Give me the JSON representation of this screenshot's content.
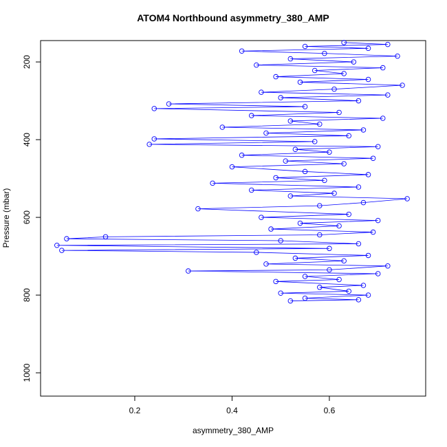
{
  "chart_data": {
    "type": "line",
    "title": "ATOM4 Northbound asymmetry_380_AMP",
    "x_label": "asymmetry_380_AMP",
    "y_label": "Pressure (mbar)",
    "xlim": [
      0.0064,
      0.798
    ],
    "ylim": [
      1060,
      145
    ],
    "xticks": [
      0.2,
      0.4,
      0.6
    ],
    "yticks": [
      200,
      400,
      600,
      800,
      1000
    ],
    "series": [
      {
        "color": "#0000ff",
        "x": [
          0.52,
          0.66,
          0.55,
          0.68,
          0.5,
          0.64,
          0.58,
          0.67,
          0.49,
          0.62,
          0.55,
          0.7,
          0.31,
          0.6,
          0.72,
          0.47,
          0.63,
          0.53,
          0.68,
          0.45,
          0.05,
          0.6,
          0.04,
          0.66,
          0.5,
          0.06,
          0.14,
          0.58,
          0.69,
          0.48,
          0.62,
          0.54,
          0.7,
          0.46,
          0.64,
          0.33,
          0.58,
          0.67,
          0.76,
          0.52,
          0.61,
          0.44,
          0.66,
          0.36,
          0.59,
          0.49,
          0.68,
          0.55,
          0.4,
          0.63,
          0.51,
          0.69,
          0.42,
          0.6,
          0.53,
          0.7,
          0.23,
          0.57,
          0.24,
          0.64,
          0.47,
          0.67,
          0.38,
          0.58,
          0.52,
          0.71,
          0.44,
          0.62,
          0.24,
          0.55,
          0.27,
          0.66,
          0.5,
          0.72,
          0.46,
          0.61,
          0.75,
          0.54,
          0.68,
          0.49,
          0.63,
          0.57,
          0.71,
          0.45,
          0.65,
          0.52,
          0.74,
          0.59,
          0.42,
          0.68,
          0.55,
          0.72,
          0.63
        ],
        "values": [
          815,
          812,
          808,
          800,
          795,
          790,
          780,
          775,
          765,
          760,
          752,
          745,
          738,
          735,
          725,
          720,
          712,
          705,
          698,
          690,
          685,
          680,
          672,
          668,
          660,
          655,
          650,
          645,
          638,
          630,
          622,
          615,
          608,
          600,
          592,
          578,
          570,
          562,
          552,
          545,
          538,
          530,
          522,
          512,
          505,
          498,
          490,
          482,
          470,
          462,
          455,
          448,
          440,
          432,
          425,
          418,
          412,
          405,
          398,
          390,
          383,
          375,
          368,
          360,
          352,
          345,
          338,
          330,
          320,
          315,
          308,
          300,
          292,
          285,
          278,
          270,
          260,
          252,
          245,
          238,
          230,
          222,
          215,
          208,
          200,
          192,
          185,
          178,
          172,
          165,
          160,
          155,
          150
        ]
      }
    ]
  }
}
